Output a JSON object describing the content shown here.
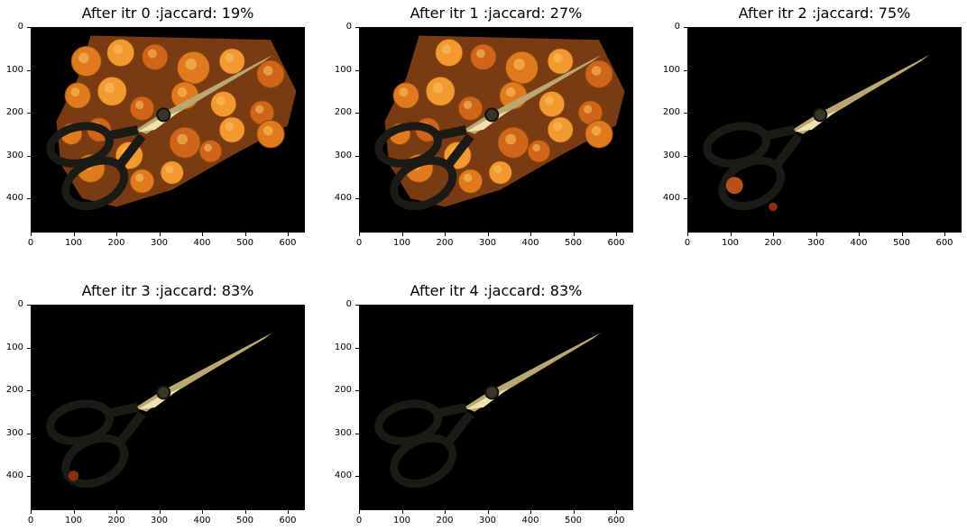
{
  "panels": [
    {
      "title": "After itr 0 :jaccard: 19%",
      "jaccard_percent": 19,
      "iteration": 0
    },
    {
      "title": "After itr 1 :jaccard: 27%",
      "jaccard_percent": 27,
      "iteration": 1
    },
    {
      "title": "After itr 2 :jaccard: 75%",
      "jaccard_percent": 75,
      "iteration": 2
    },
    {
      "title": "After itr 3 :jaccard: 83%",
      "jaccard_percent": 83,
      "iteration": 3
    },
    {
      "title": "After itr 4 :jaccard: 83%",
      "jaccard_percent": 83,
      "iteration": 4
    }
  ],
  "axes": {
    "x_ticks": [
      "0",
      "100",
      "200",
      "300",
      "400",
      "500",
      "600"
    ],
    "y_ticks": [
      "0",
      "100",
      "200",
      "300",
      "400"
    ],
    "x_range": [
      0,
      640
    ],
    "y_range": [
      480,
      0
    ]
  },
  "colors": {
    "background": "#000000",
    "fruit": "#e07a1c",
    "blade": "#b9a872",
    "handle": "#1c1a14"
  }
}
